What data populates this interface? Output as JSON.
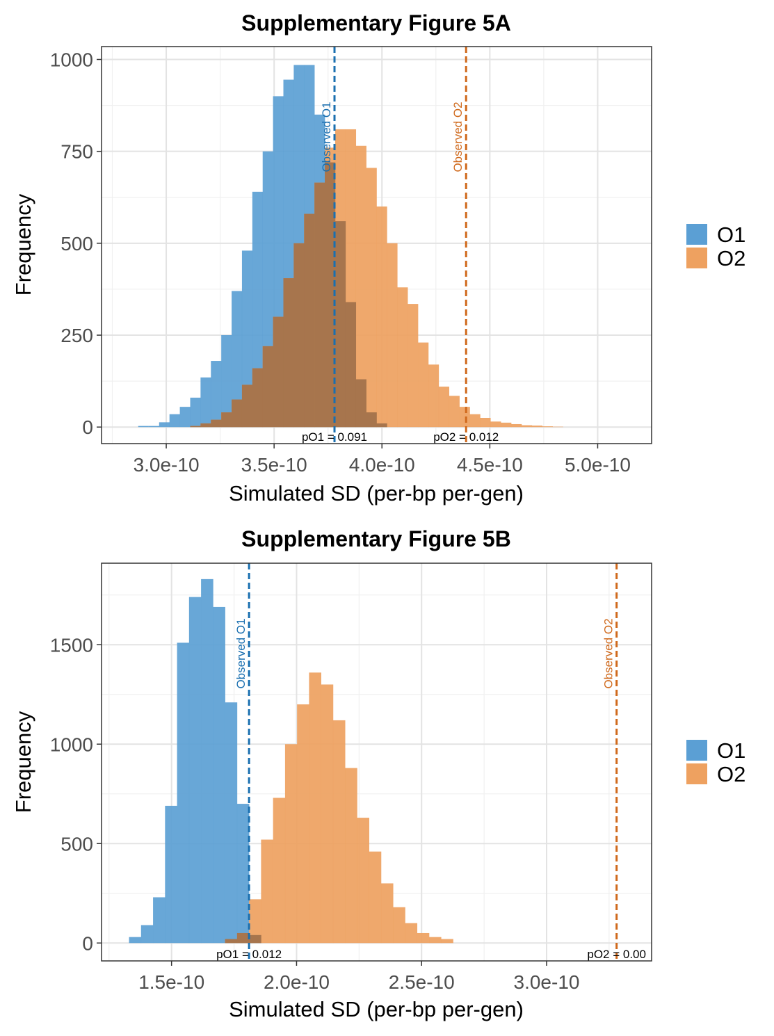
{
  "chart_data": [
    {
      "type": "histogram",
      "title": "Supplementary Figure 5A",
      "xlabel": "Simulated SD (per-bp per-gen)",
      "ylabel": "Frequency",
      "xlim": [
        2.7e-10,
        5.25e-10
      ],
      "ylim": [
        -45,
        1035
      ],
      "x_ticks": [
        3e-10,
        3.5e-10,
        4e-10,
        4.5e-10,
        5e-10
      ],
      "x_tick_labels": [
        "3.0e-10",
        "3.5e-10",
        "4.0e-10",
        "4.5e-10",
        "5.0e-10"
      ],
      "y_ticks": [
        0,
        250,
        500,
        750,
        1000
      ],
      "y_tick_labels": [
        "0",
        "250",
        "500",
        "750",
        "1000"
      ],
      "grid": true,
      "legend_position": "right",
      "bin_width": 4.8e-12,
      "series": [
        {
          "name": "O1",
          "color": "#5b9fd4",
          "bin_starts": [
            2.87e-10,
            2.919e-10,
            2.967e-10,
            3.015e-10,
            3.063e-10,
            3.111e-10,
            3.159e-10,
            3.207e-10,
            3.255e-10,
            3.303e-10,
            3.351e-10,
            3.399e-10,
            3.447e-10,
            3.495e-10,
            3.543e-10,
            3.591e-10,
            3.639e-10,
            3.687e-10,
            3.735e-10,
            3.783e-10,
            3.831e-10,
            3.879e-10,
            3.927e-10,
            3.975e-10
          ],
          "values": [
            3,
            3,
            13,
            35,
            55,
            80,
            135,
            180,
            250,
            370,
            480,
            640,
            750,
            900,
            945,
            985,
            985,
            850,
            720,
            560,
            340,
            130,
            40,
            10
          ]
        },
        {
          "name": "O2",
          "color": "#eea160",
          "bin_starts": [
            3.111e-10,
            3.159e-10,
            3.207e-10,
            3.255e-10,
            3.303e-10,
            3.351e-10,
            3.399e-10,
            3.447e-10,
            3.495e-10,
            3.543e-10,
            3.591e-10,
            3.639e-10,
            3.687e-10,
            3.735e-10,
            3.783e-10,
            3.831e-10,
            3.879e-10,
            3.927e-10,
            3.975e-10,
            4.023e-10,
            4.071e-10,
            4.119e-10,
            4.167e-10,
            4.215e-10,
            4.263e-10,
            4.311e-10,
            4.359e-10,
            4.407e-10,
            4.455e-10,
            4.503e-10,
            4.551e-10,
            4.599e-10,
            4.647e-10,
            4.695e-10,
            4.743e-10,
            4.791e-10
          ],
          "values": [
            3,
            10,
            20,
            40,
            75,
            115,
            160,
            220,
            300,
            405,
            500,
            580,
            665,
            760,
            810,
            810,
            765,
            705,
            600,
            500,
            380,
            335,
            230,
            170,
            110,
            85,
            55,
            35,
            25,
            15,
            12,
            8,
            5,
            4,
            2,
            1
          ]
        }
      ],
      "reference_lines": [
        {
          "label": "Observed O1",
          "x": 3.78e-10,
          "color": "#1a6fb0"
        },
        {
          "label": "Observed O2",
          "x": 4.39e-10,
          "color": "#d06a1d"
        }
      ],
      "p_labels": [
        {
          "text": "pO1 = 0.091",
          "x": 3.78e-10
        },
        {
          "text": "pO2 = 0.012",
          "x": 4.39e-10
        }
      ],
      "legend_entries": [
        "O1",
        "O2"
      ]
    },
    {
      "type": "histogram",
      "title": "Supplementary Figure 5B",
      "xlabel": "Simulated SD (per-bp per-gen)",
      "ylabel": "Frequency",
      "xlim": [
        1.22e-10,
        3.42e-10
      ],
      "ylim": [
        -90,
        1910
      ],
      "x_ticks": [
        1.5e-10,
        2e-10,
        2.5e-10,
        3e-10
      ],
      "x_tick_labels": [
        "1.5e-10",
        "2.0e-10",
        "2.5e-10",
        "3.0e-10"
      ],
      "y_ticks": [
        0,
        500,
        1000,
        1500
      ],
      "y_tick_labels": [
        "0",
        "500",
        "1000",
        "1500"
      ],
      "grid": true,
      "legend_position": "right",
      "bin_width": 4.8e-12,
      "series": [
        {
          "name": "O1",
          "color": "#5b9fd4",
          "bin_starts": [
            1.33e-10,
            1.378e-10,
            1.426e-10,
            1.474e-10,
            1.522e-10,
            1.57e-10,
            1.618e-10,
            1.666e-10,
            1.714e-10,
            1.762e-10,
            1.81e-10
          ],
          "values": [
            30,
            90,
            230,
            690,
            1510,
            1740,
            1830,
            1690,
            1210,
            700,
            40
          ]
        },
        {
          "name": "O2",
          "color": "#eea160",
          "bin_starts": [
            1.714e-10,
            1.762e-10,
            1.81e-10,
            1.858e-10,
            1.906e-10,
            1.954e-10,
            2.002e-10,
            2.05e-10,
            2.098e-10,
            2.146e-10,
            2.194e-10,
            2.242e-10,
            2.29e-10,
            2.338e-10,
            2.386e-10,
            2.434e-10,
            2.482e-10,
            2.53e-10,
            2.578e-10
          ],
          "values": [
            20,
            50,
            220,
            520,
            730,
            1000,
            1200,
            1360,
            1300,
            1120,
            880,
            630,
            460,
            300,
            180,
            100,
            50,
            30,
            20
          ]
        }
      ],
      "reference_lines": [
        {
          "label": "Observed O1",
          "x": 1.81e-10,
          "color": "#1a6fb0"
        },
        {
          "label": "Observed O2",
          "x": 3.28e-10,
          "color": "#d06a1d"
        }
      ],
      "p_labels": [
        {
          "text": "pO1 = 0.012",
          "x": 1.81e-10
        },
        {
          "text": "pO2 = 0.00",
          "x": 3.28e-10
        }
      ],
      "legend_entries": [
        "O1",
        "O2"
      ]
    }
  ]
}
